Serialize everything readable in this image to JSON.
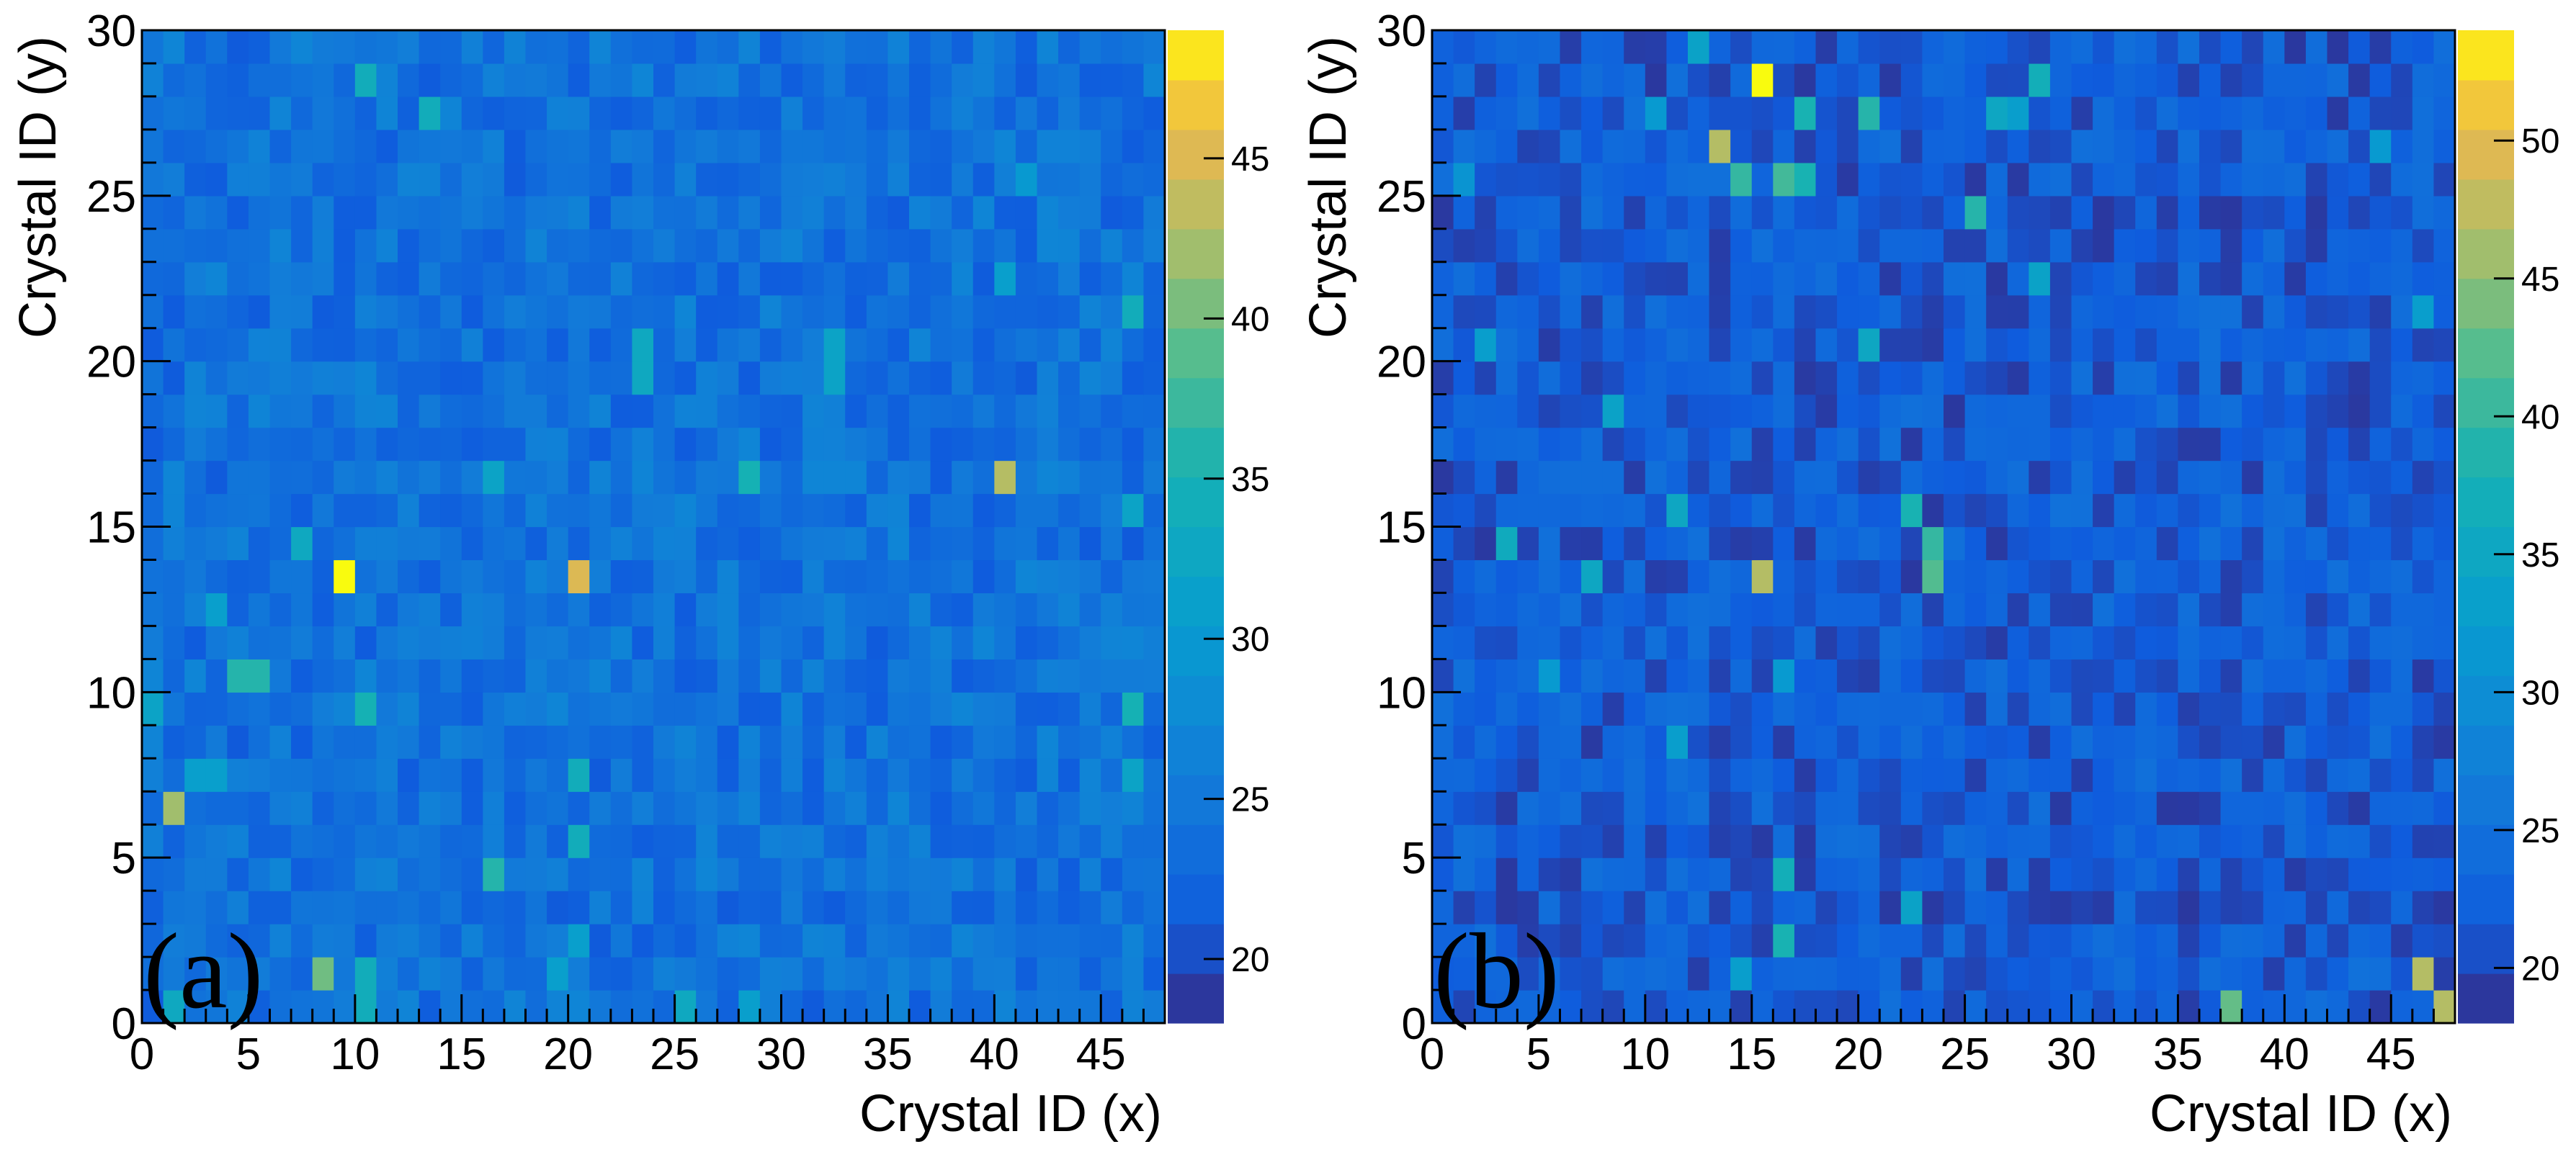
{
  "chart_data": [
    {
      "type": "heatmap",
      "panel_label": "(a)",
      "xlabel": "Crystal ID (x)",
      "ylabel": "Crystal ID (y)",
      "xlim": [
        0,
        48
      ],
      "ylim": [
        0,
        30
      ],
      "x_ticks": [
        "0",
        "5",
        "10",
        "15",
        "20",
        "25",
        "30",
        "35",
        "40",
        "45"
      ],
      "y_ticks": [
        "0",
        "5",
        "10",
        "15",
        "20",
        "25",
        "30"
      ],
      "colorbar": {
        "min": 18,
        "max": 49,
        "ticks": [
          "20",
          "25",
          "30",
          "35",
          "40",
          "45"
        ]
      },
      "background_value": 24,
      "cell_jitter": 3,
      "hot_cells": [
        {
          "x": 9,
          "y": 13,
          "value": 49
        },
        {
          "x": 20,
          "y": 13,
          "value": 45
        },
        {
          "x": 40,
          "y": 16,
          "value": 43
        },
        {
          "x": 1,
          "y": 6,
          "value": 42
        },
        {
          "x": 8,
          "y": 1,
          "value": 40
        },
        {
          "x": 4,
          "y": 10,
          "value": 36
        },
        {
          "x": 5,
          "y": 10,
          "value": 36
        },
        {
          "x": 16,
          "y": 4,
          "value": 36
        },
        {
          "x": 25,
          "y": 0,
          "value": 33
        },
        {
          "x": 1,
          "y": 0,
          "value": 33
        },
        {
          "x": 10,
          "y": 1,
          "value": 34
        },
        {
          "x": 10,
          "y": 0,
          "value": 34
        },
        {
          "x": 28,
          "y": 16,
          "value": 35
        },
        {
          "x": 10,
          "y": 9,
          "value": 35
        },
        {
          "x": 46,
          "y": 9,
          "value": 35
        },
        {
          "x": 20,
          "y": 5,
          "value": 34
        },
        {
          "x": 20,
          "y": 7,
          "value": 34
        },
        {
          "x": 10,
          "y": 28,
          "value": 34
        },
        {
          "x": 13,
          "y": 27,
          "value": 34
        },
        {
          "x": 46,
          "y": 21,
          "value": 34
        },
        {
          "x": 23,
          "y": 20,
          "value": 33
        },
        {
          "x": 23,
          "y": 19,
          "value": 33
        },
        {
          "x": 32,
          "y": 19,
          "value": 32
        },
        {
          "x": 32,
          "y": 20,
          "value": 32
        },
        {
          "x": 7,
          "y": 14,
          "value": 33
        },
        {
          "x": 16,
          "y": 16,
          "value": 32
        },
        {
          "x": 46,
          "y": 15,
          "value": 32
        },
        {
          "x": 46,
          "y": 7,
          "value": 32
        },
        {
          "x": 3,
          "y": 12,
          "value": 31
        },
        {
          "x": 20,
          "y": 2,
          "value": 31
        },
        {
          "x": 19,
          "y": 1,
          "value": 31
        },
        {
          "x": 0,
          "y": 9,
          "value": 32
        },
        {
          "x": 2,
          "y": 7,
          "value": 31
        },
        {
          "x": 3,
          "y": 7,
          "value": 31
        },
        {
          "x": 28,
          "y": 0,
          "value": 31
        },
        {
          "x": 40,
          "y": 22,
          "value": 31
        },
        {
          "x": 41,
          "y": 25,
          "value": 30
        }
      ]
    },
    {
      "type": "heatmap",
      "panel_label": "(b)",
      "xlabel": "Crystal ID (x)",
      "ylabel": "Crystal ID (y)",
      "xlim": [
        0,
        48
      ],
      "ylim": [
        0,
        30
      ],
      "x_ticks": [
        "0",
        "5",
        "10",
        "15",
        "20",
        "25",
        "30",
        "35",
        "40",
        "45"
      ],
      "y_ticks": [
        "0",
        "5",
        "10",
        "15",
        "20",
        "25",
        "30"
      ],
      "colorbar": {
        "min": 18,
        "max": 54,
        "ticks": [
          "20",
          "25",
          "30",
          "35",
          "40",
          "45",
          "50"
        ]
      },
      "background_value": 22,
      "cell_jitter": 3,
      "hot_cells": [
        {
          "x": 15,
          "y": 28,
          "value": 54
        },
        {
          "x": 13,
          "y": 26,
          "value": 47
        },
        {
          "x": 15,
          "y": 13,
          "value": 47
        },
        {
          "x": 47,
          "y": 0,
          "value": 47
        },
        {
          "x": 46,
          "y": 1,
          "value": 47
        },
        {
          "x": 37,
          "y": 0,
          "value": 43
        },
        {
          "x": 23,
          "y": 13,
          "value": 42
        },
        {
          "x": 23,
          "y": 14,
          "value": 40
        },
        {
          "x": 14,
          "y": 25,
          "value": 40
        },
        {
          "x": 16,
          "y": 25,
          "value": 41
        },
        {
          "x": 17,
          "y": 25,
          "value": 38
        },
        {
          "x": 17,
          "y": 27,
          "value": 38
        },
        {
          "x": 20,
          "y": 27,
          "value": 39
        },
        {
          "x": 25,
          "y": 24,
          "value": 39
        },
        {
          "x": 28,
          "y": 28,
          "value": 37
        },
        {
          "x": 22,
          "y": 15,
          "value": 38
        },
        {
          "x": 16,
          "y": 2,
          "value": 38
        },
        {
          "x": 16,
          "y": 4,
          "value": 37
        },
        {
          "x": 11,
          "y": 15,
          "value": 35
        },
        {
          "x": 3,
          "y": 14,
          "value": 36
        },
        {
          "x": 7,
          "y": 13,
          "value": 35
        },
        {
          "x": 8,
          "y": 18,
          "value": 34
        },
        {
          "x": 20,
          "y": 20,
          "value": 35
        },
        {
          "x": 12,
          "y": 29,
          "value": 34
        },
        {
          "x": 2,
          "y": 20,
          "value": 33
        },
        {
          "x": 28,
          "y": 22,
          "value": 34
        },
        {
          "x": 22,
          "y": 3,
          "value": 34
        },
        {
          "x": 14,
          "y": 1,
          "value": 33
        },
        {
          "x": 11,
          "y": 8,
          "value": 33
        },
        {
          "x": 5,
          "y": 10,
          "value": 32
        },
        {
          "x": 16,
          "y": 10,
          "value": 32
        },
        {
          "x": 46,
          "y": 21,
          "value": 33
        },
        {
          "x": 44,
          "y": 26,
          "value": 32
        },
        {
          "x": 1,
          "y": 25,
          "value": 31
        },
        {
          "x": 26,
          "y": 27,
          "value": 35
        },
        {
          "x": 27,
          "y": 27,
          "value": 33
        },
        {
          "x": 10,
          "y": 27,
          "value": 32
        }
      ]
    }
  ]
}
